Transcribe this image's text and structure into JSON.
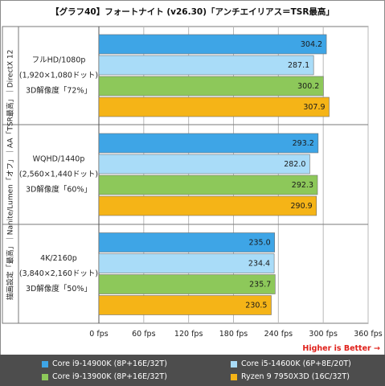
{
  "title": "【グラフ40】フォートナイト (v26.30)「アンチエイリアス＝TSR最高」",
  "higher_is_better": "Higher is Better →",
  "chart_data": {
    "type": "bar",
    "orientation": "horizontal",
    "title": "【グラフ40】フォートナイト (v26.30)「アンチエイリアス＝TSR最高」",
    "side_label": "描画設定「最高」｜Nanite/Lumen「オフ」｜AA「TSR最高」｜DirectX 12",
    "groups": [
      {
        "label": [
          "フルHD/1080p",
          "(1,920×1,080ドット)",
          "3D解像度「72%」"
        ]
      },
      {
        "label": [
          "WQHD/1440p",
          "(2,560×1,440ドット)",
          "3D解像度「60%」"
        ]
      },
      {
        "label": [
          "4K/2160p",
          "(3,840×2,160ドット)",
          "3D解像度「50%」"
        ]
      }
    ],
    "series": [
      {
        "name": "Core i9-14900K (8P+16E/32T)",
        "color": "#3ea5e6",
        "values": [
          304.2,
          293.2,
          235.0
        ]
      },
      {
        "name": "Core i5-14600K (6P+8E/20T)",
        "color": "#a9dcf8",
        "values": [
          287.1,
          282.0,
          234.4
        ]
      },
      {
        "name": "Core i9-13900K (8P+16E/32T)",
        "color": "#8dc85a",
        "values": [
          300.2,
          292.3,
          235.7
        ]
      },
      {
        "name": "Ryzen 9 7950X3D (16C/32T)",
        "color": "#f5b417",
        "values": [
          307.9,
          290.9,
          230.5
        ]
      }
    ],
    "value_labels": [
      [
        "304.2",
        "287.1",
        "300.2",
        "307.9"
      ],
      [
        "293.2",
        "282.0",
        "292.3",
        "290.9"
      ],
      [
        "235.0",
        "234.4",
        "235.7",
        "230.5"
      ]
    ],
    "xlim": [
      0,
      360
    ],
    "xticks": [
      0,
      60,
      120,
      180,
      240,
      300,
      360
    ],
    "xtick_labels": [
      "0 fps",
      "60 fps",
      "120 fps",
      "180 fps",
      "240 fps",
      "300 fps",
      "360 fps"
    ],
    "grid": true
  }
}
